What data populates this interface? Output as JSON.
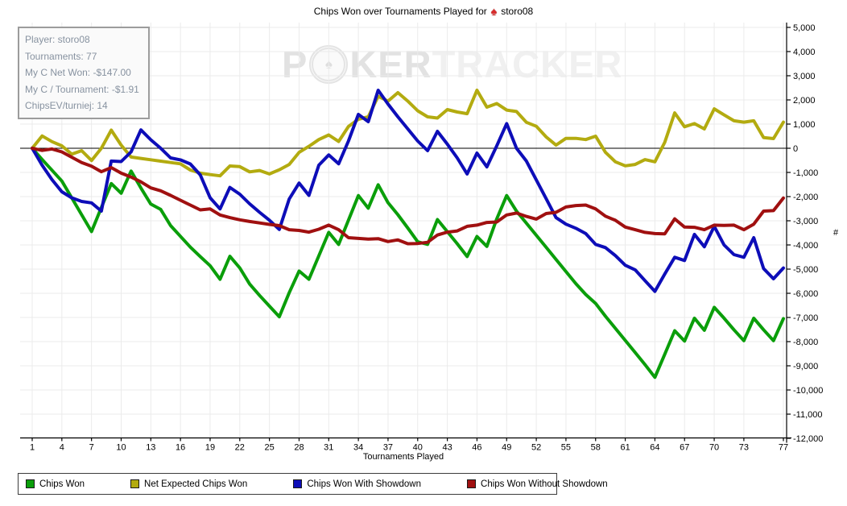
{
  "title": {
    "prefix": "Chips Won over Tournaments Played for",
    "player": "storo08",
    "suit_icon": "red-spade"
  },
  "infobox": {
    "lines": [
      "Player: storo08",
      "Tournaments: 77",
      "My C Net Won: -$147.00",
      "My C / Tournament: -$1.91",
      "ChipsEV/turniej: 14"
    ]
  },
  "watermark": {
    "part1": "P",
    "part2": "KER",
    "part3": "TRACKER",
    "full": "POKERTRACKER"
  },
  "chart_data": {
    "type": "line",
    "title": "Chips Won over Tournaments Played for storo08",
    "xlabel": "Tournaments Played",
    "ylabel": "#",
    "xlim": [
      1,
      77
    ],
    "ylim": [
      -12000,
      5000
    ],
    "x_ticks": [
      1,
      4,
      7,
      10,
      13,
      16,
      19,
      22,
      25,
      28,
      31,
      34,
      37,
      40,
      43,
      46,
      49,
      52,
      55,
      58,
      61,
      64,
      67,
      70,
      73,
      77
    ],
    "y_ticks": [
      5000,
      4000,
      3000,
      2000,
      1000,
      0,
      -1000,
      -2000,
      -3000,
      -4000,
      -5000,
      -6000,
      -7000,
      -8000,
      -9000,
      -10000,
      -11000,
      -12000
    ],
    "grid": true,
    "legend_position": "bottom",
    "zero_line": true,
    "series": [
      {
        "name": "Chips Won",
        "color": "#0a9e0a",
        "values": [
          0,
          -465,
          -910,
          -1355,
          -2050,
          -2750,
          -3445,
          -2450,
          -1460,
          -1860,
          -945,
          -1645,
          -2310,
          -2530,
          -3200,
          -3645,
          -4090,
          -4480,
          -4860,
          -5420,
          -4470,
          -4950,
          -5620,
          -6090,
          -6530,
          -6970,
          -5975,
          -5080,
          -5420,
          -4450,
          -3480,
          -3980,
          -2975,
          -1955,
          -2480,
          -1510,
          -2250,
          -2750,
          -3300,
          -3870,
          -3975,
          -2950,
          -3450,
          -3950,
          -4480,
          -3650,
          -4060,
          -2920,
          -1955,
          -2600,
          -3100,
          -3600,
          -4100,
          -4600,
          -5100,
          -5600,
          -6050,
          -6420,
          -6950,
          -7450,
          -7950,
          -8450,
          -8950,
          -9475,
          -8520,
          -7550,
          -7975,
          -7030,
          -7530,
          -6580,
          -7030,
          -7510,
          -7960,
          -7030,
          -7510,
          -7960,
          -7050
        ]
      },
      {
        "name": "Net Expected Chips Won",
        "color": "#b3ab10",
        "values": [
          0,
          510,
          275,
          100,
          -245,
          -100,
          -505,
          0,
          750,
          130,
          -365,
          -420,
          -475,
          -535,
          -590,
          -645,
          -900,
          -1030,
          -1090,
          -1140,
          -735,
          -760,
          -975,
          -920,
          -1065,
          -890,
          -670,
          -170,
          80,
          360,
          550,
          280,
          900,
          1200,
          1300,
          2150,
          1950,
          2300,
          1950,
          1550,
          1300,
          1250,
          1600,
          1500,
          1430,
          2400,
          1700,
          1850,
          1580,
          1520,
          1075,
          910,
          465,
          130,
          410,
          410,
          360,
          500,
          -170,
          -560,
          -725,
          -670,
          -470,
          -560,
          250,
          1465,
          890,
          1020,
          800,
          1630,
          1380,
          1135,
          1080,
          1135,
          445,
          400,
          1080
        ]
      },
      {
        "name": "Chips Won With Showdown",
        "color": "#0d0db8",
        "values": [
          0,
          -700,
          -1300,
          -1800,
          -2050,
          -2200,
          -2260,
          -2600,
          -530,
          -550,
          -150,
          760,
          350,
          0,
          -400,
          -480,
          -650,
          -1100,
          -2050,
          -2510,
          -1620,
          -1900,
          -2300,
          -2650,
          -2975,
          -3360,
          -2100,
          -1440,
          -1950,
          -700,
          -275,
          -645,
          300,
          1400,
          1100,
          2400,
          1830,
          1300,
          800,
          300,
          -100,
          700,
          170,
          -400,
          -1065,
          -200,
          -770,
          100,
          1020,
          0,
          -530,
          -1310,
          -2090,
          -2870,
          -3140,
          -3310,
          -3530,
          -3975,
          -4110,
          -4440,
          -4840,
          -5030,
          -5475,
          -5920,
          -5200,
          -4510,
          -4645,
          -3565,
          -4075,
          -3230,
          -4000,
          -4400,
          -4510,
          -3700,
          -4975,
          -5400,
          -4955
        ]
      },
      {
        "name": "Chips Won Without Showdown",
        "color": "#a01010",
        "values": [
          0,
          -90,
          -30,
          -150,
          -370,
          -590,
          -745,
          -970,
          -800,
          -1030,
          -1190,
          -1390,
          -1640,
          -1760,
          -1950,
          -2150,
          -2350,
          -2550,
          -2510,
          -2760,
          -2870,
          -2960,
          -3030,
          -3090,
          -3150,
          -3200,
          -3370,
          -3400,
          -3470,
          -3350,
          -3180,
          -3370,
          -3700,
          -3730,
          -3760,
          -3740,
          -3860,
          -3790,
          -3950,
          -3940,
          -3890,
          -3590,
          -3470,
          -3420,
          -3230,
          -3180,
          -3070,
          -3050,
          -2760,
          -2680,
          -2820,
          -2930,
          -2700,
          -2650,
          -2430,
          -2370,
          -2350,
          -2510,
          -2810,
          -2980,
          -3260,
          -3370,
          -3480,
          -3530,
          -3540,
          -2920,
          -3260,
          -3270,
          -3370,
          -3180,
          -3190,
          -3180,
          -3370,
          -3140,
          -2600,
          -2580,
          -2060
        ]
      }
    ],
    "colors": {
      "grid": "#ebebeb",
      "axis": "#000000",
      "zero_line": "#000000",
      "background": "#ffffff"
    }
  }
}
